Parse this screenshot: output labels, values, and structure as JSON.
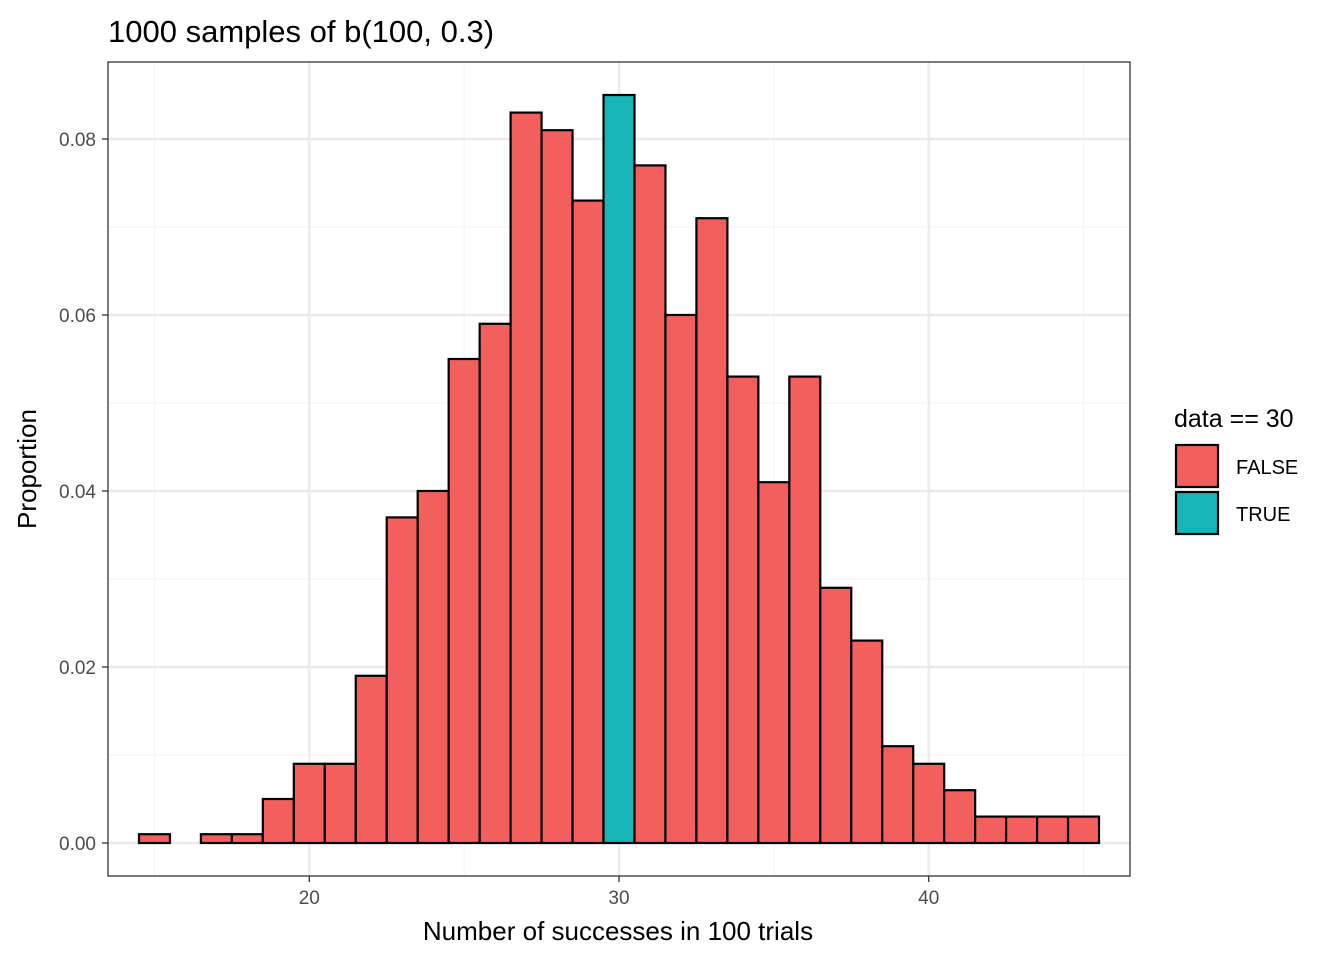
{
  "chart_data": {
    "type": "bar",
    "title": "1000 samples of b(100, 0.3)",
    "xlabel": "Number of successes in 100 trials",
    "ylabel": "Proportion",
    "xlim": [
      13.5,
      46.5
    ],
    "ylim": [
      -0.00375,
      0.08875
    ],
    "x_ticks": [
      20,
      30,
      40
    ],
    "x_minor": [
      15,
      25,
      35,
      45
    ],
    "y_ticks": [
      0.0,
      0.02,
      0.04,
      0.06,
      0.08
    ],
    "y_tick_labels": [
      "0.00",
      "0.02",
      "0.04",
      "0.06",
      "0.08"
    ],
    "y_minor": [
      0.01,
      0.03,
      0.05,
      0.07
    ],
    "x": [
      15,
      16,
      17,
      18,
      19,
      20,
      21,
      22,
      23,
      24,
      25,
      26,
      27,
      28,
      29,
      30,
      31,
      32,
      33,
      34,
      35,
      36,
      37,
      38,
      39,
      40,
      41,
      42,
      43,
      44,
      45
    ],
    "values": [
      0.001,
      0.0,
      0.001,
      0.001,
      0.005,
      0.009,
      0.009,
      0.019,
      0.037,
      0.04,
      0.055,
      0.059,
      0.083,
      0.081,
      0.073,
      0.085,
      0.077,
      0.06,
      0.071,
      0.053,
      0.041,
      0.053,
      0.029,
      0.023,
      0.011,
      0.009,
      0.006,
      0.003,
      0.003,
      0.003,
      0.003
    ],
    "highlight_x": 30,
    "grid": true,
    "legend": {
      "title": "data == 30",
      "position": "right",
      "entries": [
        {
          "label": "FALSE",
          "color": "#F8766D"
        },
        {
          "label": "TRUE",
          "color": "#00BFC4"
        }
      ]
    },
    "colors": {
      "false": "#F25F5C",
      "true": "#17B4B8",
      "outline": "#000000",
      "grid_major": "#EBEBEB",
      "grid_minor": "#F4F4F4",
      "panel_border": "#333333"
    }
  }
}
